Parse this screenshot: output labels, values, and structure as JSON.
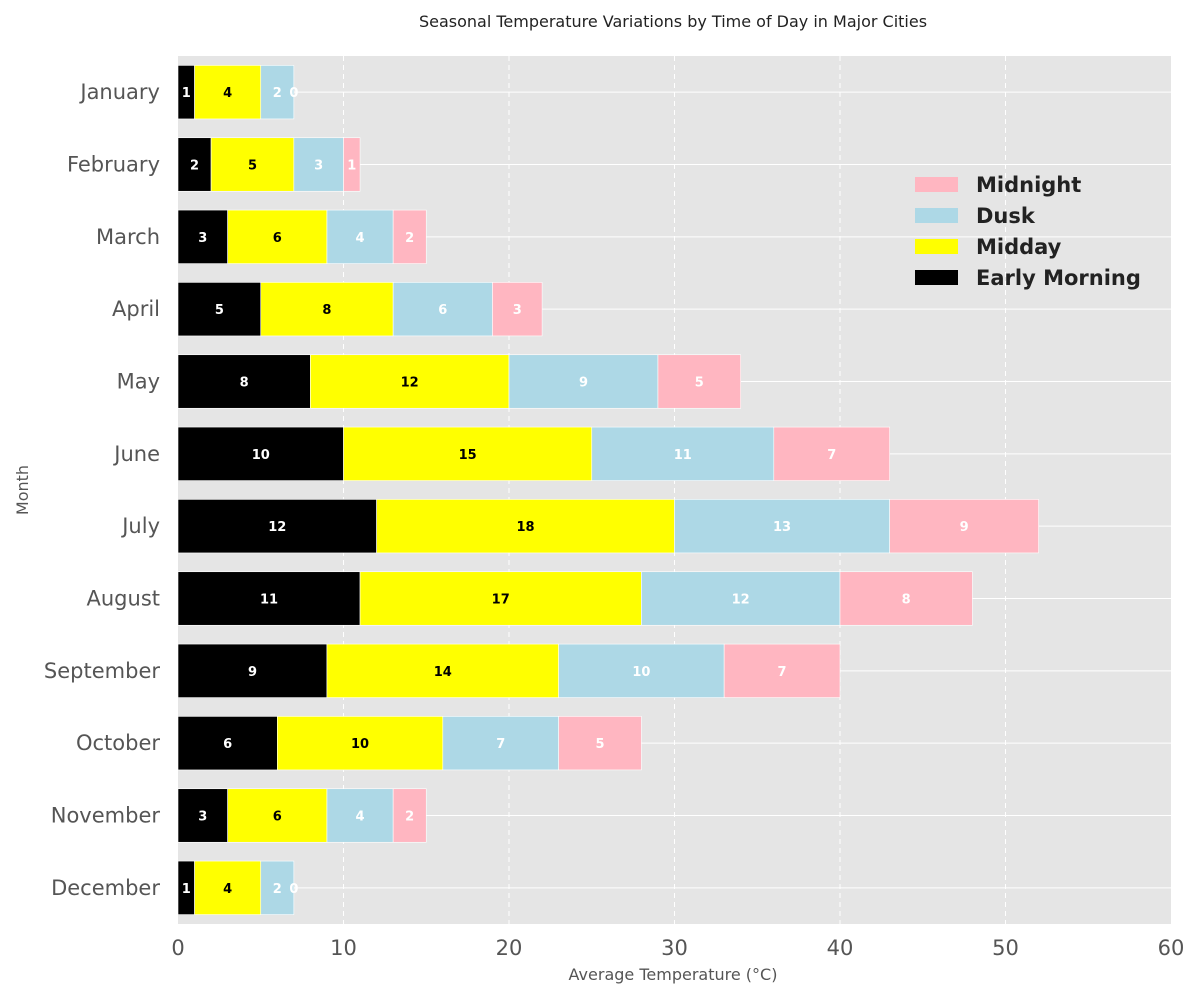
{
  "chart_data": {
    "type": "bar",
    "orientation": "horizontal",
    "stacked": true,
    "title": "Seasonal Temperature Variations by Time of Day in Major Cities",
    "xlabel": "Average Temperature (°C)",
    "ylabel": "Month",
    "xlim": [
      0,
      60
    ],
    "xticks": [
      "0",
      "10",
      "20",
      "30",
      "40",
      "50",
      "60"
    ],
    "grid": true,
    "legend_position": "upper-right",
    "categories": [
      "January",
      "February",
      "March",
      "April",
      "May",
      "June",
      "July",
      "August",
      "September",
      "October",
      "November",
      "December"
    ],
    "series": [
      {
        "name": "Early Morning",
        "color": "#000000",
        "label_color": "#ffffff",
        "values": [
          1,
          2,
          3,
          5,
          8,
          10,
          12,
          11,
          9,
          6,
          3,
          1
        ]
      },
      {
        "name": "Midday",
        "color": "#ffff00",
        "label_color": "#000000",
        "values": [
          4,
          5,
          6,
          8,
          12,
          15,
          18,
          17,
          14,
          10,
          6,
          4
        ]
      },
      {
        "name": "Dusk",
        "color": "#add8e6",
        "label_color": "#ffffff",
        "values": [
          2,
          3,
          4,
          6,
          9,
          11,
          13,
          12,
          10,
          7,
          4,
          2
        ]
      },
      {
        "name": "Midnight",
        "color": "#ffb6c1",
        "label_color": "#ffffff",
        "values": [
          0,
          1,
          2,
          3,
          5,
          7,
          9,
          8,
          7,
          5,
          2,
          0
        ]
      }
    ],
    "legend_order": [
      "Midnight",
      "Dusk",
      "Midday",
      "Early Morning"
    ]
  }
}
